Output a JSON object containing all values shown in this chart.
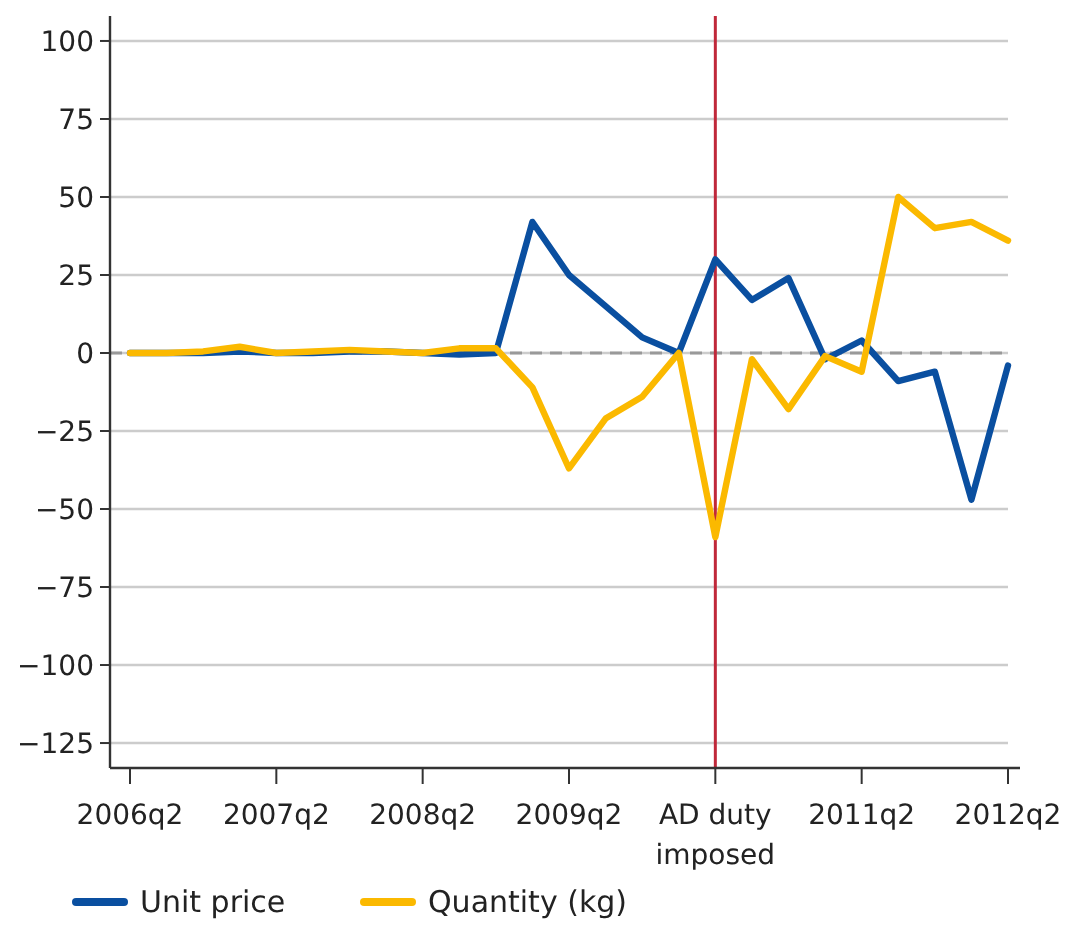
{
  "chart_data": {
    "type": "line",
    "categories": [
      "2006q2",
      null,
      null,
      null,
      "2007q2",
      null,
      null,
      null,
      "2008q2",
      null,
      null,
      null,
      "2009q2",
      null,
      null,
      null,
      "AD duty imposed",
      null,
      null,
      null,
      "2011q2",
      null,
      null,
      null,
      "2012q2"
    ],
    "series": [
      {
        "name": "Unit price",
        "color": "#0a4fa0",
        "values": [
          0,
          0,
          0,
          0.5,
          0,
          0,
          0.5,
          0.5,
          0,
          -0.5,
          0,
          42,
          25,
          15,
          5,
          0,
          30,
          17,
          24,
          -2,
          4,
          -9,
          -6,
          -47,
          -4
        ]
      },
      {
        "name": "Quantity (kg)",
        "color": "#fbb900",
        "values": [
          0,
          0,
          0.5,
          2,
          0,
          0.5,
          1,
          0.5,
          0,
          1.5,
          1.5,
          -11,
          -37,
          -21,
          -14,
          0,
          -59,
          -2,
          -18,
          -1,
          -6,
          50,
          40,
          42,
          36
        ]
      }
    ],
    "ylim": [
      -133,
      108
    ],
    "yticks": [
      100,
      75,
      50,
      25,
      0,
      {
        "value": -25,
        "label": "−25"
      },
      {
        "value": -50,
        "label": "−50"
      },
      {
        "value": -75,
        "label": "−75"
      },
      {
        "value": -100,
        "label": "−100"
      },
      {
        "value": -125,
        "label": "−125"
      }
    ],
    "ref_lines": [
      {
        "axis": "y",
        "value": 0,
        "color": "#999999",
        "line_style": "dashed"
      },
      {
        "axis": "x",
        "value": "AD duty imposed",
        "color": "#c0283a",
        "line_style": "solid"
      }
    ],
    "grid": "y",
    "legend": "bottom left",
    "marker": "none",
    "line_style": "solid"
  }
}
